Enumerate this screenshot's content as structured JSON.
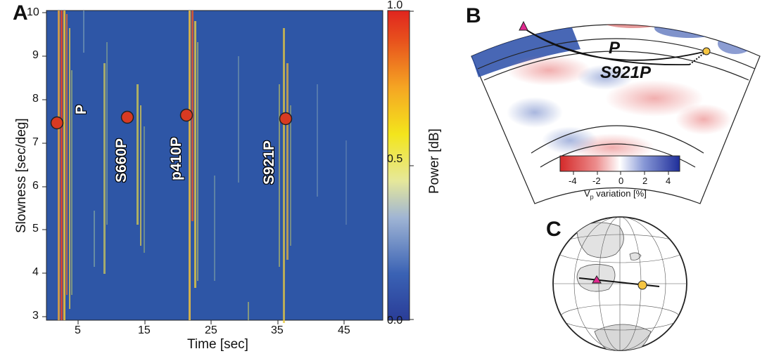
{
  "panels": {
    "a": {
      "letter": "A",
      "xlabel": "Time [sec]",
      "ylabel": "Slowness [sec/deg]",
      "xticks": [
        "5",
        "15",
        "25",
        "35",
        "45"
      ],
      "yticks": [
        "3",
        "4",
        "5",
        "6",
        "7",
        "8",
        "9",
        "10"
      ],
      "colorbar_label": "Power [dB]",
      "colorbar_ticks": [
        "1.0",
        "0.5",
        "0.0"
      ],
      "phase_labels": [
        "P",
        "S660P",
        "p410P",
        "S921P"
      ]
    },
    "b": {
      "letter": "B",
      "phase_P": "P",
      "phase_S921P": "S921P",
      "scale_ticks": [
        "-4",
        "-2",
        "0",
        "2",
        "4"
      ],
      "scale_label_main": "V",
      "scale_label_sub": "p",
      "scale_label_rest": " variation [%]"
    },
    "c": {
      "letter": "C"
    }
  },
  "chart_data": {
    "type": "heatmap",
    "xlabel": "Time [sec]",
    "ylabel": "Slowness [sec/deg]",
    "xlim": [
      0,
      50
    ],
    "ylim": [
      2.9,
      10.1
    ],
    "colorbar": {
      "label": "Power [dB]",
      "range": [
        0.0,
        1.0
      ]
    },
    "markers": [
      {
        "label": "P",
        "time": 1.5,
        "slowness": 7.5
      },
      {
        "label": "S660P",
        "time": 12.5,
        "slowness": 7.6
      },
      {
        "label": "p410P",
        "time": 21.2,
        "slowness": 7.65
      },
      {
        "label": "S921P",
        "time": 36.0,
        "slowness": 7.6
      }
    ]
  },
  "colors": {
    "background_blue": "#2e56a6",
    "marker_red": "#d83a22",
    "triangle_magenta": "#e0298f",
    "source_yellow": "#f5c542"
  }
}
